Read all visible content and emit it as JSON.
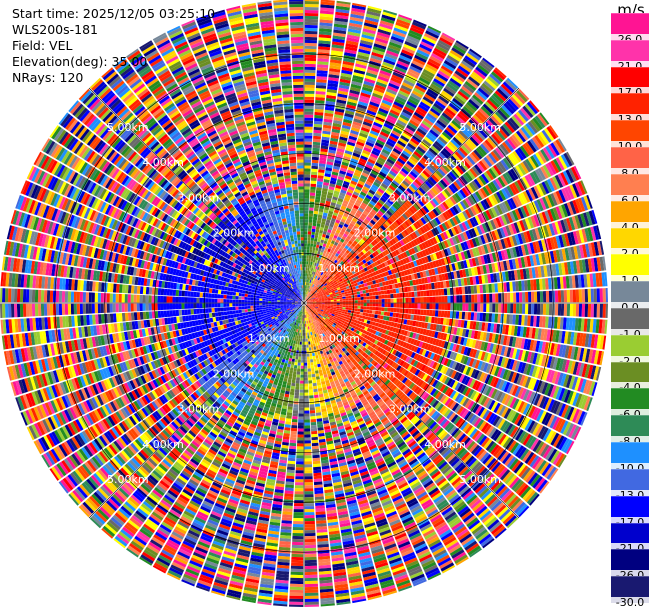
{
  "info": {
    "start_time": "Start time: 2025/12/05 03:25:10",
    "instrument": "WLS200s-181",
    "field": "Field: VEL",
    "elevation": "Elevation(deg): 35.00",
    "nrays": "NRays: 120"
  },
  "colorbar": {
    "unit": "m/s",
    "bins": [
      {
        "label": "26.0",
        "color": "#ff1493"
      },
      {
        "label": "21.0",
        "color": "#ff33aa"
      },
      {
        "label": "17.0",
        "color": "#ff0000"
      },
      {
        "label": "13.0",
        "color": "#ff2200"
      },
      {
        "label": "10.0",
        "color": "#ff4500"
      },
      {
        "label": "8.0",
        "color": "#ff6347"
      },
      {
        "label": "6.0",
        "color": "#ff7f50"
      },
      {
        "label": "4.0",
        "color": "#ffa500"
      },
      {
        "label": "2.0",
        "color": "#ffd700"
      },
      {
        "label": "1.0",
        "color": "#ffff00"
      },
      {
        "label": "0.0",
        "color": "#778899"
      },
      {
        "label": "-1.0",
        "color": "#696969"
      },
      {
        "label": "-2.0",
        "color": "#9acd32"
      },
      {
        "label": "-4.0",
        "color": "#6b8e23"
      },
      {
        "label": "-6.0",
        "color": "#228b22"
      },
      {
        "label": "-8.0",
        "color": "#2e8b57"
      },
      {
        "label": "-10.0",
        "color": "#1e90ff"
      },
      {
        "label": "-13.0",
        "color": "#4169e1"
      },
      {
        "label": "-17.0",
        "color": "#0000ff"
      },
      {
        "label": "-21.0",
        "color": "#0000cd"
      },
      {
        "label": "-26.0",
        "color": "#000080"
      },
      {
        "label": "-30.0",
        "color": "#191970"
      }
    ]
  },
  "range_rings": {
    "labels": [
      "1.00km",
      "2.00km",
      "3.00km",
      "4.00km",
      "5.00km"
    ],
    "ring_values_km": [
      1,
      2,
      3,
      4,
      5
    ]
  }
}
